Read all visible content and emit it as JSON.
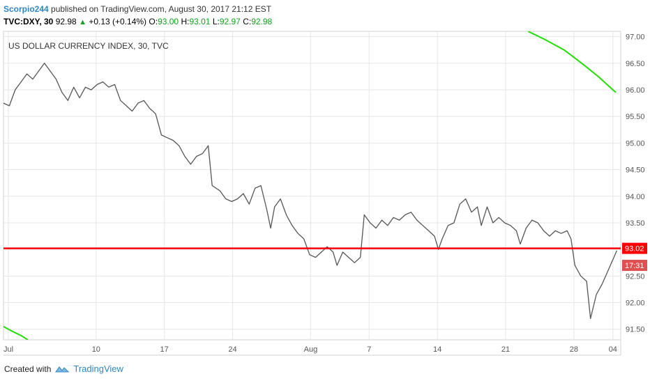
{
  "header": {
    "author": "Scorpio244",
    "published": "published on TradingView.com, August 30, 2017 21:12 EST",
    "symbol": "TVC:DXY, 30",
    "last": "92.98",
    "change": "+0.13 (+0.14%)",
    "open_label": "O:",
    "open": "93.00",
    "high_label": "H:",
    "high": "93.01",
    "low_label": "L:",
    "low": "92.97",
    "close_label": "C:",
    "close": "92.98"
  },
  "footer": {
    "created_with": "Created with",
    "brand": "TradingView"
  },
  "colors": {
    "price_line": "#555555",
    "support_line": "#ff0000",
    "curve": "#22dd00",
    "grid": "#e6e6e6",
    "axis_text": "#555555"
  },
  "chart_data": {
    "type": "line",
    "title": "US DOLLAR CURRENCY INDEX, 30, TVC",
    "xlim": [
      0,
      63.3
    ],
    "ylim": [
      91.3,
      97.1
    ],
    "x_ticks": [
      {
        "x": 0.5,
        "label": "Jul"
      },
      {
        "x": 9.5,
        "label": "10"
      },
      {
        "x": 16.5,
        "label": "17"
      },
      {
        "x": 23.5,
        "label": "24"
      },
      {
        "x": 31.5,
        "label": "Aug"
      },
      {
        "x": 37.5,
        "label": "7"
      },
      {
        "x": 44.5,
        "label": "14"
      },
      {
        "x": 51.5,
        "label": "21"
      },
      {
        "x": 58.5,
        "label": "28"
      },
      {
        "x": 62.5,
        "label": "04"
      }
    ],
    "y_ticks": [
      97.0,
      96.5,
      96.0,
      95.5,
      95.0,
      94.5,
      94.0,
      93.5,
      93.0,
      92.5,
      92.0,
      91.5
    ],
    "y_tick_labels": [
      "97.00",
      "96.50",
      "96.00",
      "95.50",
      "95.00",
      "94.50",
      "94.00",
      "93.50",
      "93.00",
      "92.50",
      "92.00",
      "91.50"
    ],
    "grid": true,
    "series": [
      {
        "kind": "price",
        "points": [
          [
            0.0,
            95.75
          ],
          [
            0.6,
            95.7
          ],
          [
            1.2,
            96.0
          ],
          [
            1.8,
            96.15
          ],
          [
            2.4,
            96.3
          ],
          [
            3.0,
            96.2
          ],
          [
            3.6,
            96.35
          ],
          [
            4.2,
            96.5
          ],
          [
            4.8,
            96.35
          ],
          [
            5.4,
            96.2
          ],
          [
            6.0,
            95.95
          ],
          [
            6.6,
            95.8
          ],
          [
            7.2,
            96.05
          ],
          [
            7.8,
            95.85
          ],
          [
            8.4,
            96.05
          ],
          [
            9.0,
            96.0
          ],
          [
            9.6,
            96.1
          ],
          [
            10.2,
            96.15
          ],
          [
            10.8,
            96.05
          ],
          [
            11.4,
            96.1
          ],
          [
            12.0,
            95.8
          ],
          [
            12.6,
            95.7
          ],
          [
            13.2,
            95.6
          ],
          [
            13.8,
            95.75
          ],
          [
            14.4,
            95.8
          ],
          [
            15.0,
            95.65
          ],
          [
            15.6,
            95.55
          ],
          [
            16.2,
            95.15
          ],
          [
            16.8,
            95.1
          ],
          [
            17.4,
            95.05
          ],
          [
            18.0,
            94.95
          ],
          [
            18.6,
            94.75
          ],
          [
            19.2,
            94.6
          ],
          [
            19.8,
            94.75
          ],
          [
            20.4,
            94.8
          ],
          [
            21.0,
            94.95
          ],
          [
            21.4,
            94.2
          ],
          [
            22.2,
            94.1
          ],
          [
            22.8,
            93.95
          ],
          [
            23.4,
            93.9
          ],
          [
            24.0,
            93.95
          ],
          [
            24.6,
            94.05
          ],
          [
            25.2,
            93.85
          ],
          [
            25.8,
            94.15
          ],
          [
            26.4,
            94.2
          ],
          [
            27.0,
            93.75
          ],
          [
            27.4,
            93.4
          ],
          [
            27.8,
            93.8
          ],
          [
            28.4,
            93.95
          ],
          [
            29.0,
            93.65
          ],
          [
            29.6,
            93.45
          ],
          [
            30.2,
            93.3
          ],
          [
            30.8,
            93.2
          ],
          [
            31.4,
            92.9
          ],
          [
            32.0,
            92.85
          ],
          [
            32.6,
            92.95
          ],
          [
            33.2,
            93.05
          ],
          [
            33.8,
            92.95
          ],
          [
            34.2,
            92.7
          ],
          [
            34.8,
            92.95
          ],
          [
            35.4,
            92.85
          ],
          [
            36.0,
            92.75
          ],
          [
            36.6,
            92.85
          ],
          [
            37.0,
            93.65
          ],
          [
            37.6,
            93.5
          ],
          [
            38.2,
            93.4
          ],
          [
            38.8,
            93.55
          ],
          [
            39.4,
            93.45
          ],
          [
            40.0,
            93.6
          ],
          [
            40.6,
            93.55
          ],
          [
            41.2,
            93.65
          ],
          [
            41.8,
            93.7
          ],
          [
            42.4,
            93.55
          ],
          [
            43.0,
            93.45
          ],
          [
            43.6,
            93.35
          ],
          [
            44.2,
            93.25
          ],
          [
            44.6,
            93.0
          ],
          [
            45.0,
            93.2
          ],
          [
            45.6,
            93.45
          ],
          [
            46.2,
            93.5
          ],
          [
            46.8,
            93.85
          ],
          [
            47.4,
            93.95
          ],
          [
            48.0,
            93.7
          ],
          [
            48.6,
            93.8
          ],
          [
            49.0,
            93.45
          ],
          [
            49.6,
            93.8
          ],
          [
            50.2,
            93.5
          ],
          [
            50.8,
            93.6
          ],
          [
            51.4,
            93.5
          ],
          [
            52.0,
            93.45
          ],
          [
            52.6,
            93.35
          ],
          [
            53.0,
            93.1
          ],
          [
            53.6,
            93.4
          ],
          [
            54.2,
            93.55
          ],
          [
            54.8,
            93.5
          ],
          [
            55.4,
            93.35
          ],
          [
            56.0,
            93.25
          ],
          [
            56.6,
            93.35
          ],
          [
            57.2,
            93.3
          ],
          [
            57.8,
            93.35
          ],
          [
            58.2,
            93.2
          ],
          [
            58.6,
            92.7
          ],
          [
            59.2,
            92.5
          ],
          [
            59.8,
            92.4
          ],
          [
            60.2,
            91.7
          ],
          [
            60.8,
            92.15
          ],
          [
            61.4,
            92.35
          ],
          [
            62.0,
            92.6
          ],
          [
            62.6,
            92.85
          ],
          [
            62.9,
            92.98
          ]
        ]
      },
      {
        "kind": "curve_top",
        "points": [
          [
            53.8,
            97.1
          ],
          [
            55.5,
            96.95
          ],
          [
            57.5,
            96.75
          ],
          [
            59.3,
            96.5
          ],
          [
            61.0,
            96.25
          ],
          [
            62.8,
            95.95
          ]
        ]
      },
      {
        "kind": "curve_bottom",
        "points": [
          [
            0.0,
            91.55
          ],
          [
            1.0,
            91.45
          ],
          [
            1.8,
            91.38
          ],
          [
            2.5,
            91.3
          ]
        ]
      }
    ],
    "horizontal_line": 93.02,
    "price_labels": [
      {
        "value": 93.02,
        "label": "93.02",
        "color": "#ff0000"
      },
      {
        "value": 92.7,
        "label": "17:31",
        "color": "#e05050"
      }
    ]
  }
}
